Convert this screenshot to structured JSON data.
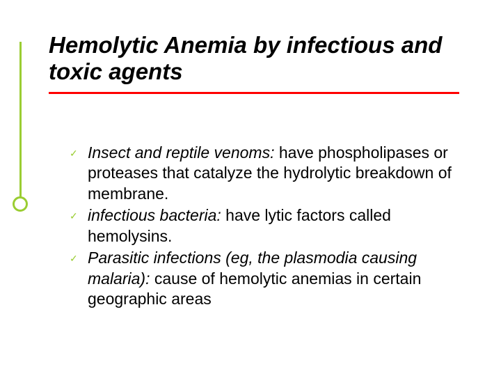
{
  "slide": {
    "title": "Hemolytic Anemia by infectious and toxic agents",
    "title_fontsize": 33,
    "title_color": "#000000",
    "underline_color": "#ff0000",
    "accent_color": "#9acd32",
    "background_color": "#ffffff",
    "body_fontsize": 23,
    "body_color": "#000000",
    "bullets": [
      {
        "lead": "Insect and reptile venoms:",
        "rest": " have phospholipases or proteases that catalyze the hydrolytic breakdown of membrane."
      },
      {
        "lead": "infectious bacteria:",
        "rest": "  have lytic factors called hemolysins."
      },
      {
        "lead": "Parasitic infections (eg, the plasmodia causing malaria):",
        "rest": " cause of hemolytic anemias in certain geographic areas"
      }
    ],
    "bullet_marker": "✓"
  }
}
